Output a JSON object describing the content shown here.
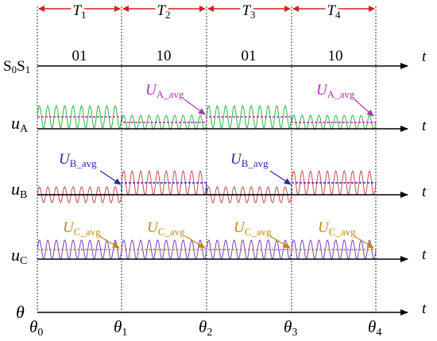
{
  "periods": [
    {
      "name": "T",
      "sub": "1"
    },
    {
      "name": "T",
      "sub": "2"
    },
    {
      "name": "T",
      "sub": "3"
    },
    {
      "name": "T",
      "sub": "4"
    }
  ],
  "axis_var": "t",
  "rows": {
    "s": {
      "name": "S",
      "sub0": "0",
      "mid": "S",
      "sub1": "1"
    },
    "ua": {
      "name": "u",
      "sub": "A"
    },
    "ub": {
      "name": "u",
      "sub": "B"
    },
    "uc": {
      "name": "u",
      "sub": "C"
    },
    "theta": {
      "name": "θ"
    }
  },
  "states": [
    "01",
    "10",
    "01",
    "10"
  ],
  "avg_labels": {
    "a": {
      "name": "U",
      "sub": "A_avg"
    },
    "b": {
      "name": "U",
      "sub": "B_avg"
    },
    "c": {
      "name": "U",
      "sub": "C_avg"
    }
  },
  "theta_ticks": [
    {
      "name": "θ",
      "sub": "0"
    },
    {
      "name": "θ",
      "sub": "1"
    },
    {
      "name": "θ",
      "sub": "2"
    },
    {
      "name": "θ",
      "sub": "3"
    },
    {
      "name": "θ",
      "sub": "4"
    }
  ],
  "colors": {
    "phase_a": "#2db34a",
    "phase_b": "#c0504d",
    "phase_c": "#7a3fc0",
    "avg_a": "#b030b0",
    "avg_b": "#2a2aa8",
    "avg_c": "#c08a10",
    "period_arrow": "#d42020",
    "axis": "#000000"
  }
}
